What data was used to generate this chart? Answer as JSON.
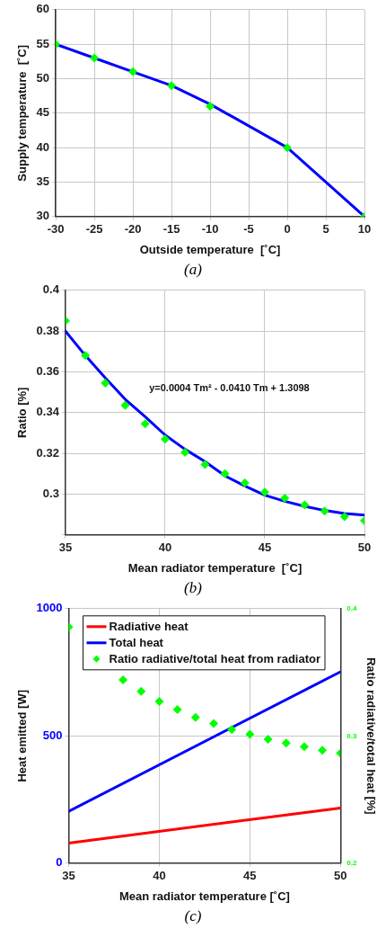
{
  "chart_data": [
    {
      "type": "line",
      "xlabel": "Outside temperature  [˚C]",
      "ylabel": "Supply temperature  [˚C]",
      "xlim": [
        -30,
        10
      ],
      "xticks": [
        -30,
        -25,
        -20,
        -15,
        -10,
        -5,
        0,
        5,
        10
      ],
      "ylim": [
        30,
        60
      ],
      "yticks": [
        30,
        35,
        40,
        45,
        50,
        55,
        60
      ],
      "grid": true,
      "annotations": [
        "(a)"
      ],
      "series": [
        {
          "color": "#0000ff",
          "marker": "none",
          "x": [
            -30,
            -25,
            -20,
            -15,
            -10,
            0,
            10
          ],
          "values": [
            55,
            53,
            51,
            49,
            46.3,
            40,
            30
          ]
        },
        {
          "type": "scatter",
          "marker": "diamond",
          "color": "#00ff00",
          "x": [
            -30,
            -25,
            -20,
            -15,
            -10,
            0,
            10
          ],
          "values": [
            55,
            53,
            51,
            49,
            46,
            40,
            30
          ]
        }
      ]
    },
    {
      "type": "scatter",
      "xlabel": "Mean radiator temperature  [˚C]",
      "ylabel": "Ratio [%]",
      "xlim": [
        35,
        50
      ],
      "xticks": [
        35,
        40,
        45,
        50
      ],
      "ylim": [
        0.28,
        0.4
      ],
      "yticks": [
        {
          "value": 0.28,
          "label": null
        },
        0.3,
        0.32,
        0.34,
        0.36,
        0.38,
        0.4
      ],
      "grid": true,
      "annotations": [
        "y=0.0004 Tm² - 0.0410 Tm + 1.3098",
        "(b)"
      ],
      "series": [
        {
          "type": "line",
          "marker": "none",
          "color": "#0000ff",
          "x": [
            35,
            36,
            37,
            38,
            39,
            40,
            41,
            42,
            43,
            44,
            45,
            46,
            47,
            48,
            49,
            50
          ],
          "values": [
            0.38,
            0.368,
            0.357,
            0.3465,
            0.338,
            0.329,
            0.322,
            0.316,
            0.309,
            0.304,
            0.2995,
            0.2965,
            0.294,
            0.292,
            0.2905,
            0.2897
          ]
        },
        {
          "color": "#00ff00",
          "marker": "diamond",
          "x": [
            35,
            36,
            37,
            38,
            39,
            40,
            41,
            42,
            43,
            44,
            45,
            46,
            47,
            48,
            49,
            50
          ],
          "values": [
            0.385,
            0.368,
            0.3545,
            0.3436,
            0.3345,
            0.327,
            0.3205,
            0.3145,
            0.31,
            0.3055,
            0.301,
            0.298,
            0.2947,
            0.2917,
            0.289,
            0.287
          ]
        }
      ]
    },
    {
      "type": "line",
      "xlabel": "Mean radiator temperature [˚C]",
      "ylabel": "Heat emitted [W]",
      "y2label": "Ratio radiative/total heat [%]",
      "xlim": [
        35,
        50
      ],
      "xticks": [
        35,
        40,
        45,
        50
      ],
      "ylim": [
        0,
        1000
      ],
      "yticks": [
        0,
        500,
        1000
      ],
      "y2lim": [
        0.2,
        0.4
      ],
      "y2ticks": [
        0.2,
        0.3,
        0.4
      ],
      "grid": true,
      "legend": "top left",
      "annotations": [
        "(c)"
      ],
      "series": [
        {
          "name": "Radiative heat",
          "marker": "none",
          "color": "#ff0000",
          "x": [
            35,
            50
          ],
          "values": [
            79,
            217
          ]
        },
        {
          "name": "Total heat",
          "marker": "none",
          "color": "#0000ff",
          "x": [
            35,
            50
          ],
          "values": [
            204,
            752
          ]
        },
        {
          "type": "scatter",
          "marker": "diamond",
          "name": "Ratio radiative/total heat from radiator",
          "color": "#00ff00",
          "axis": "y2",
          "x": [
            35,
            36,
            37,
            38,
            39,
            40,
            41,
            42,
            43,
            44,
            45,
            46,
            47,
            48,
            49,
            50
          ],
          "values": [
            0.3855,
            null,
            null,
            0.344,
            0.335,
            0.327,
            0.3207,
            0.3145,
            0.3097,
            0.305,
            0.3013,
            0.2974,
            0.2944,
            0.2916,
            0.2888,
            0.2865
          ]
        }
      ]
    }
  ]
}
